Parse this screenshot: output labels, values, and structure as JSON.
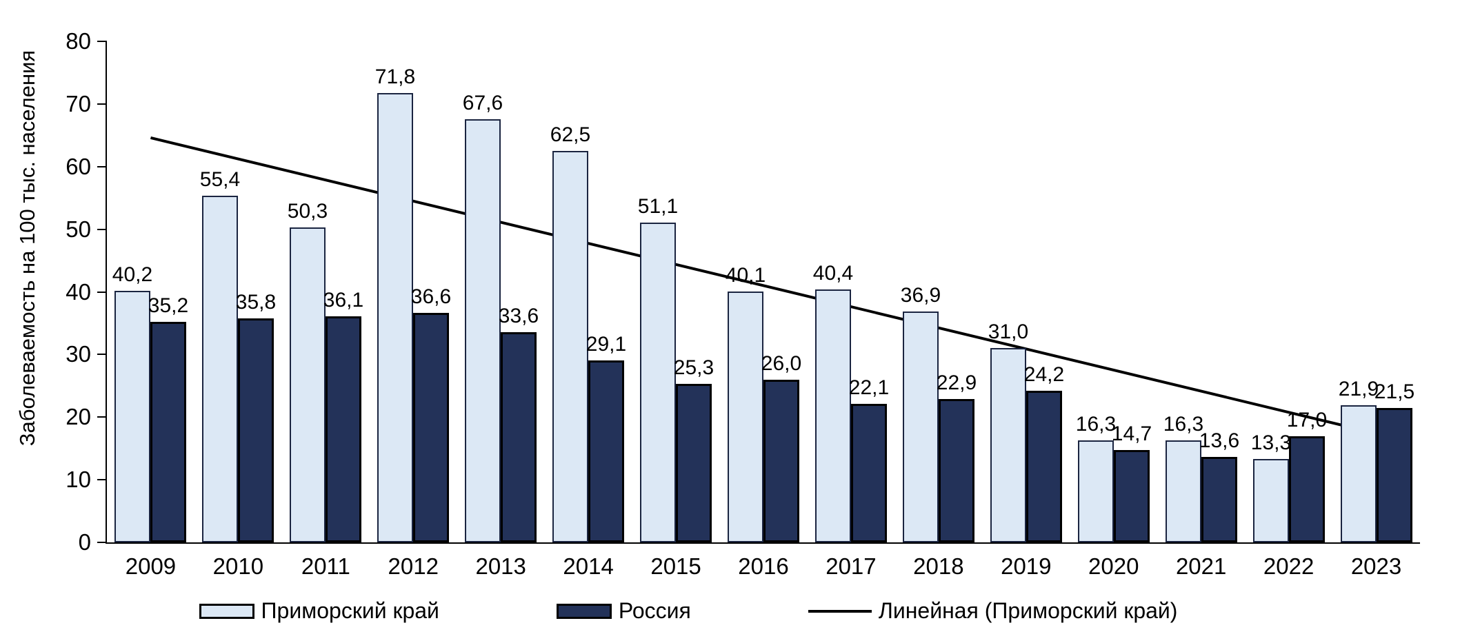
{
  "chart_data": {
    "type": "bar",
    "title": "",
    "ylabel": "Заболеваемость на 100 тыс. населения",
    "xlabel": "",
    "ylim": [
      0,
      80
    ],
    "ytick_step": 10,
    "ytick_labels": [
      "0",
      "10",
      "20",
      "30",
      "40",
      "50",
      "60",
      "70",
      "80"
    ],
    "grid": false,
    "legend_position": "bottom",
    "categories": [
      "2009",
      "2010",
      "2011",
      "2012",
      "2013",
      "2014",
      "2015",
      "2016",
      "2017",
      "2018",
      "2019",
      "2020",
      "2021",
      "2022",
      "2023"
    ],
    "series": [
      {
        "name": "Приморский край",
        "color": "#dce8f5",
        "border_color": "#1a2440",
        "values": [
          40.2,
          55.4,
          50.3,
          71.8,
          67.6,
          62.5,
          51.1,
          40.1,
          40.4,
          36.9,
          31.0,
          16.3,
          16.3,
          13.3,
          21.9
        ],
        "labels": [
          "40,2",
          "55,4",
          "50,3",
          "71,8",
          "67,6",
          "62,5",
          "51,1",
          "40,1",
          "40,4",
          "36,9",
          "31,0",
          "16,3",
          "16,3",
          "13,3",
          "21,9"
        ]
      },
      {
        "name": "Россия",
        "color": "#233259",
        "border_color": "#000000",
        "values": [
          35.2,
          35.8,
          36.1,
          36.6,
          33.6,
          29.1,
          25.3,
          26.0,
          22.1,
          22.9,
          24.2,
          14.7,
          13.6,
          17.0,
          21.5
        ],
        "labels": [
          "35,2",
          "35,8",
          "36,1",
          "36,6",
          "33,6",
          "29,1",
          "25,3",
          "26,0",
          "22,1",
          "22,9",
          "24,2",
          "14,7",
          "13,6",
          "17,0",
          "21,5"
        ]
      }
    ],
    "trendline": {
      "name": "Линейная (Приморский край)",
      "color": "#000000",
      "start_value": 64.6,
      "end_value": 17.4
    }
  }
}
